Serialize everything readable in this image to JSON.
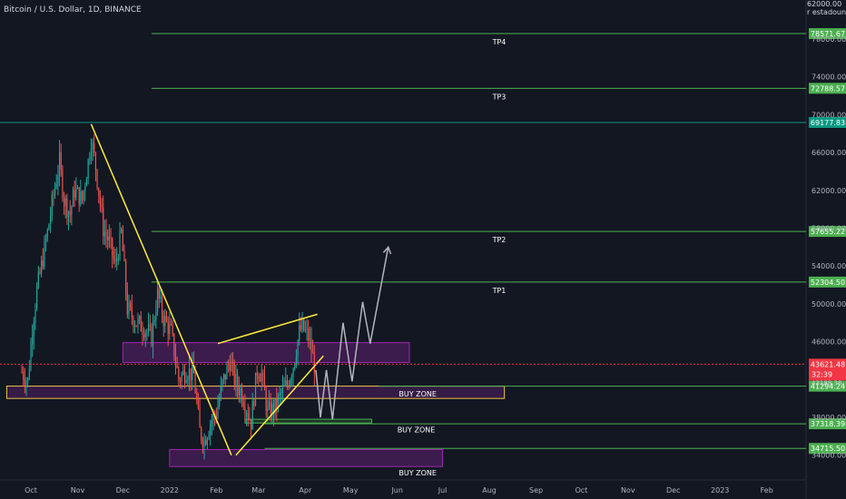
{
  "header": {
    "symbol": "Bitcoin / U.S. Dollar, 1D, BINANCE",
    "corner_top": "62000.00",
    "corner_label": "r estadounide"
  },
  "colors": {
    "background": "#131722",
    "up": "#26a69a",
    "down": "#ef5350",
    "level_line": "#4caf50",
    "label_green": "#4caf50",
    "label_teal": "#089981",
    "label_red": "#f23645",
    "trendline": "#ffeb3b",
    "zone_purple": "#9c27b0",
    "projection": "#b2b5be",
    "current_price_line": "#f23645"
  },
  "chart_data": {
    "type": "candlestick",
    "title": "Bitcoin / U.S. Dollar, 1D, BINANCE",
    "x_ticks": [
      "Oct",
      "Nov",
      "Dec",
      "2022",
      "Feb",
      "Mar",
      "Apr",
      "May",
      "Jun",
      "Jul",
      "Aug",
      "Sep",
      "Oct",
      "Nov",
      "Dec",
      "2023",
      "Feb"
    ],
    "y_ticks": [
      "78000.00",
      "74000.00",
      "70000.00",
      "66000.00",
      "62000.00",
      "58000.00",
      "54000.00",
      "50000.00",
      "46000.00",
      "38000.00",
      "34000.00"
    ],
    "ylim": [
      31000,
      84000
    ],
    "grid": false,
    "price_path": [
      [
        "2021-09-25",
        42800
      ],
      [
        "2021-09-29",
        41800
      ],
      [
        "2021-10-02",
        47500
      ],
      [
        "2021-10-05",
        51500
      ],
      [
        "2021-10-08",
        54000
      ],
      [
        "2021-10-12",
        57500
      ],
      [
        "2021-10-16",
        61500
      ],
      [
        "2021-10-20",
        65000
      ],
      [
        "2021-10-23",
        61000
      ],
      [
        "2021-10-27",
        59500
      ],
      [
        "2021-10-30",
        62000
      ],
      [
        "2021-11-04",
        61000
      ],
      [
        "2021-11-08",
        65000
      ],
      [
        "2021-11-10",
        67500
      ],
      [
        "2021-11-13",
        64500
      ],
      [
        "2021-11-18",
        58000
      ],
      [
        "2021-11-22",
        56500
      ],
      [
        "2021-11-26",
        54000
      ],
      [
        "2021-11-30",
        57500
      ],
      [
        "2021-12-04",
        49500
      ],
      [
        "2021-12-10",
        48000
      ],
      [
        "2021-12-15",
        47500
      ],
      [
        "2021-12-20",
        46500
      ],
      [
        "2021-12-24",
        51000
      ],
      [
        "2021-12-28",
        48500
      ],
      [
        "2022-01-02",
        47000
      ],
      [
        "2022-01-07",
        42000
      ],
      [
        "2022-01-12",
        43000
      ],
      [
        "2022-01-17",
        42500
      ],
      [
        "2022-01-21",
        36500
      ],
      [
        "2022-01-24",
        35500
      ],
      [
        "2022-01-28",
        37500
      ],
      [
        "2022-02-01",
        38500
      ],
      [
        "2022-02-05",
        41500
      ],
      [
        "2022-02-10",
        44000
      ],
      [
        "2022-02-13",
        42000
      ],
      [
        "2022-02-18",
        40500
      ],
      [
        "2022-02-24",
        37500
      ],
      [
        "2022-02-28",
        43000
      ],
      [
        "2022-03-03",
        42500
      ],
      [
        "2022-03-07",
        38500
      ],
      [
        "2022-03-12",
        39000
      ],
      [
        "2022-03-16",
        40500
      ],
      [
        "2022-03-20",
        41500
      ],
      [
        "2022-03-24",
        43500
      ],
      [
        "2022-03-28",
        47000
      ],
      [
        "2022-03-30",
        47500
      ],
      [
        "2022-04-03",
        46500
      ],
      [
        "2022-04-07",
        43621.48
      ]
    ],
    "levels": [
      {
        "name": "TP4",
        "price": 78571.67,
        "label_text": "78571.67"
      },
      {
        "name": "TP3",
        "price": 72788.57,
        "label_text": "72788.57"
      },
      {
        "name": "",
        "price": 69177.83,
        "label_text": "69177.83"
      },
      {
        "name": "TP2",
        "price": 57655.22,
        "label_text": "57655.22"
      },
      {
        "name": "TP1",
        "price": 52304.5,
        "label_text": "52304.50"
      },
      {
        "name": "",
        "price": 41294.24,
        "label_text": "41294.24"
      },
      {
        "name": "",
        "price": 37318.39,
        "label_text": "37318.39"
      },
      {
        "name": "",
        "price": 34715.5,
        "label_text": "34715.50"
      }
    ],
    "zones": [
      {
        "label": "",
        "from": "2021-12-01",
        "to": "2022-06-09",
        "low": 43800,
        "high": 45900
      },
      {
        "label": "BUY ZONE",
        "from": "2021-09-15",
        "to": "2022-08-11",
        "low": 40000,
        "high": 41300
      },
      {
        "label": "BUY ZONE",
        "from": "2022-02-20",
        "to": "2022-05-15",
        "low": 37400,
        "high": 37800
      },
      {
        "label": "BUY ZONE",
        "from": "2022-01-01",
        "to": "2022-07-01",
        "low": 32800,
        "high": 34600
      }
    ],
    "current_price": {
      "price_text": "43621.48",
      "countdown": "32:39",
      "extra": "43188.38"
    },
    "trendlines": [
      {
        "from": [
          "2021-11-10",
          69000
        ],
        "to": [
          "2022-02-11",
          34000
        ]
      },
      {
        "from": [
          "2022-02-14",
          34000
        ],
        "to": [
          "2022-04-13",
          44500
        ]
      },
      {
        "from": [
          "2022-02-02",
          45800
        ],
        "to": [
          "2022-04-09",
          48900
        ]
      }
    ],
    "projection_path": [
      [
        "2022-04-08",
        43000
      ],
      [
        "2022-04-11",
        38000
      ],
      [
        "2022-04-15",
        43000
      ],
      [
        "2022-04-19",
        37800
      ],
      [
        "2022-04-26",
        48000
      ],
      [
        "2022-05-02",
        41800
      ],
      [
        "2022-05-09",
        50200
      ],
      [
        "2022-05-14",
        45800
      ],
      [
        "2022-05-26",
        56000
      ]
    ]
  }
}
